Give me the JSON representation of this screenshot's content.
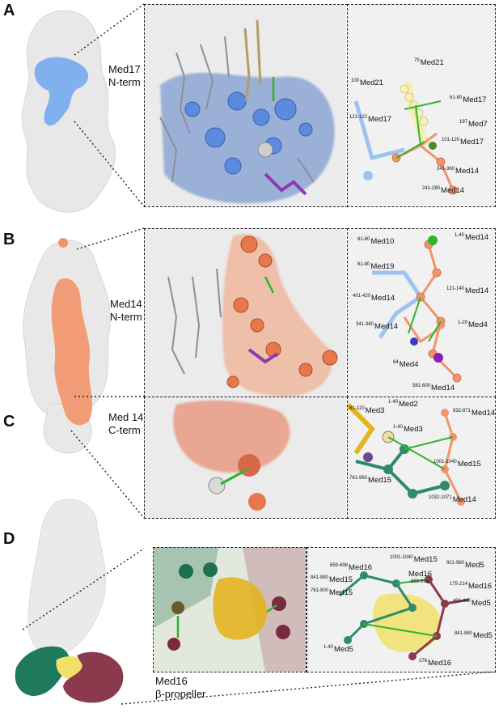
{
  "panels": {
    "A": {
      "letter": "A",
      "caption_line1": "Med17",
      "caption_line2": "N-term",
      "labels": [
        {
          "sup": "75",
          "name": "Med21"
        },
        {
          "sup": "100",
          "name": "Med21"
        },
        {
          "sup": "61-80",
          "name": "Med17"
        },
        {
          "sup": "121-122",
          "name": "Med17"
        },
        {
          "sup": "197",
          "name": "Med7"
        },
        {
          "sup": "101-120",
          "name": "Med17"
        },
        {
          "sup": "341-360",
          "name": "Med14"
        },
        {
          "sup": "241-280",
          "name": "Med14"
        }
      ]
    },
    "B": {
      "letter": "B",
      "caption_line1": "Med14",
      "caption_line2": "N-term",
      "labels": [
        {
          "sup": "61-80",
          "name": "Med10"
        },
        {
          "sup": "1-40",
          "name": "Med14"
        },
        {
          "sup": "61-80",
          "name": "Med19"
        },
        {
          "sup": "121-140",
          "name": "Med14"
        },
        {
          "sup": "401-420",
          "name": "Med14"
        },
        {
          "sup": "341-360",
          "name": "Med14"
        },
        {
          "sup": "1-20",
          "name": "Med4"
        },
        {
          "sup": "64",
          "name": "Med4"
        },
        {
          "sup": "581-600",
          "name": "Med14"
        }
      ]
    },
    "C": {
      "letter": "C",
      "caption_line1": "Med 14",
      "caption_line2": "C-term",
      "labels": [
        {
          "sup": "81-120",
          "name": "Med3"
        },
        {
          "sup": "1-40",
          "name": "Med2"
        },
        {
          "sup": "1-40",
          "name": "Med3"
        },
        {
          "sup": "832-871",
          "name": "Med14"
        },
        {
          "sup": "761-960",
          "name": "Med15"
        },
        {
          "sup": "1001-1040",
          "name": "Med15"
        },
        {
          "sup": "1032-1071",
          "name": "Med14"
        }
      ]
    },
    "D": {
      "letter": "D",
      "caption_line1": "Med16",
      "caption_line2": "β-propeller",
      "labels": [
        {
          "sup": "1001-1040",
          "name": "Med15"
        },
        {
          "sup": "659-698",
          "name": "Med16"
        },
        {
          "sup": "921-960",
          "name": "Med5"
        },
        {
          "sup": "",
          "name": "Med16"
        },
        {
          "sup": "859-898",
          "name": ""
        },
        {
          "sup": "841-880",
          "name": "Med15"
        },
        {
          "sup": "175-214",
          "name": "Med16"
        },
        {
          "sup": "761-800",
          "name": "Med15"
        },
        {
          "sup": "401-440",
          "name": "Med5"
        },
        {
          "sup": "841-880",
          "name": "Med5"
        },
        {
          "sup": "1-40",
          "name": "Med5"
        },
        {
          "sup": "276",
          "name": "Med16"
        }
      ]
    }
  },
  "colors": {
    "med17_blue": "#6fa6ee",
    "med14_orange": "#f2946a",
    "med16_green": "#1e7a5a",
    "med16_maroon": "#8b3a4e",
    "med16_yellow": "#f1e06a",
    "crosslink_green": "#2db52d",
    "gray_map": "#d9d9d9"
  }
}
